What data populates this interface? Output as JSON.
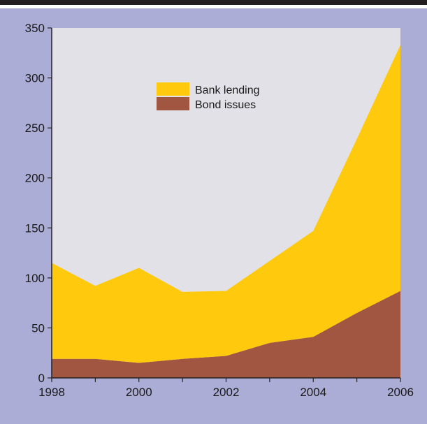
{
  "chart_data": {
    "type": "area",
    "stacked": true,
    "x": [
      1998,
      1999,
      2000,
      2001,
      2002,
      2003,
      2004,
      2005,
      2006
    ],
    "x_tick_labels": [
      "1998",
      "2000",
      "2002",
      "2004",
      "2006"
    ],
    "y_tick_labels": [
      "0",
      "50",
      "100",
      "150",
      "200",
      "250",
      "300",
      "350"
    ],
    "ylim": [
      0,
      350
    ],
    "xlim": [
      1998,
      2006
    ],
    "grid": false,
    "legend_position": "top-center",
    "series": [
      {
        "name": "Bond issues",
        "color": "#a15641",
        "values": [
          19,
          19,
          15,
          19,
          22,
          35,
          41,
          65,
          87
        ]
      },
      {
        "name": "Bank lending",
        "color": "#ffc90d",
        "values": [
          96,
          73,
          95,
          67,
          65,
          82,
          106,
          174,
          246
        ]
      }
    ],
    "colors": {
      "plot_background": "#e3e1e8",
      "panel_background": "#abadd6",
      "top_rule": "#231f20"
    }
  }
}
